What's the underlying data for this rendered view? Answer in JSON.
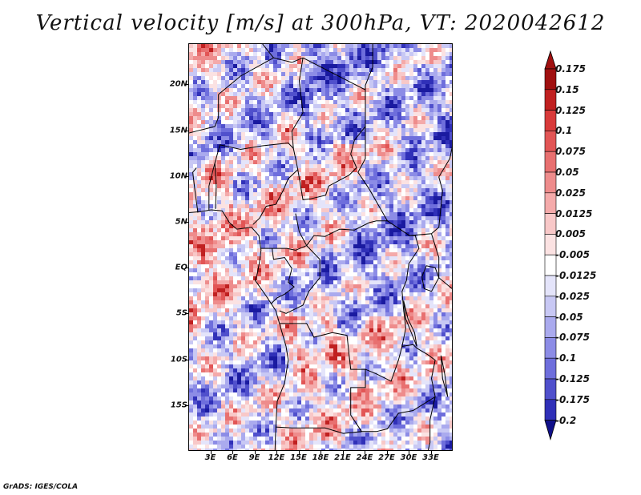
{
  "title": "Vertical velocity [m/s] at 300hPa, VT: 2020042612",
  "footer": "GrADS: IGES/COLA",
  "map": {
    "lon_range": [
      0,
      36
    ],
    "lat_range": [
      -20,
      24.5
    ],
    "lat_ticks": [
      {
        "value": 20,
        "label": "20N"
      },
      {
        "value": 15,
        "label": "15N"
      },
      {
        "value": 10,
        "label": "10N"
      },
      {
        "value": 5,
        "label": "5N"
      },
      {
        "value": 0,
        "label": "EQ"
      },
      {
        "value": -5,
        "label": "5S"
      },
      {
        "value": -10,
        "label": "10S"
      },
      {
        "value": -15,
        "label": "15S"
      }
    ],
    "lon_ticks": [
      {
        "value": 3,
        "label": "3E"
      },
      {
        "value": 6,
        "label": "6E"
      },
      {
        "value": 9,
        "label": "9E"
      },
      {
        "value": 12,
        "label": "12E"
      },
      {
        "value": 15,
        "label": "15E"
      },
      {
        "value": 18,
        "label": "18E"
      },
      {
        "value": 21,
        "label": "21E"
      },
      {
        "value": 24,
        "label": "24E"
      },
      {
        "value": 27,
        "label": "27E"
      },
      {
        "value": 30,
        "label": "30E"
      },
      {
        "value": 33,
        "label": "33E"
      }
    ]
  },
  "colorbar": {
    "levels": [
      {
        "label": "0.175",
        "color": "#a01010"
      },
      {
        "label": "0.15",
        "color": "#c02020"
      },
      {
        "label": "0.125",
        "color": "#d83a3a"
      },
      {
        "label": "0.1",
        "color": "#e25555"
      },
      {
        "label": "0.075",
        "color": "#e87070"
      },
      {
        "label": "0.05",
        "color": "#ee8c8c"
      },
      {
        "label": "0.025",
        "color": "#f4aaaa"
      },
      {
        "label": "0.0125",
        "color": "#f8c8c8"
      },
      {
        "label": "0.005",
        "color": "#fbe2e2"
      },
      {
        "label": "-0.005",
        "color": "#ffffff"
      },
      {
        "label": "-0.0125",
        "color": "#e4e4fa"
      },
      {
        "label": "-0.025",
        "color": "#c8c8f4"
      },
      {
        "label": "-0.05",
        "color": "#aaaaee"
      },
      {
        "label": "-0.075",
        "color": "#8c8ce6"
      },
      {
        "label": "-0.1",
        "color": "#6e6edc"
      },
      {
        "label": "-0.125",
        "color": "#5050cc"
      },
      {
        "label": "-0.175",
        "color": "#3030b8"
      },
      {
        "label": "-0.2",
        "color": "#1a1aa0"
      }
    ],
    "lower_extend_color": "#10108a"
  }
}
